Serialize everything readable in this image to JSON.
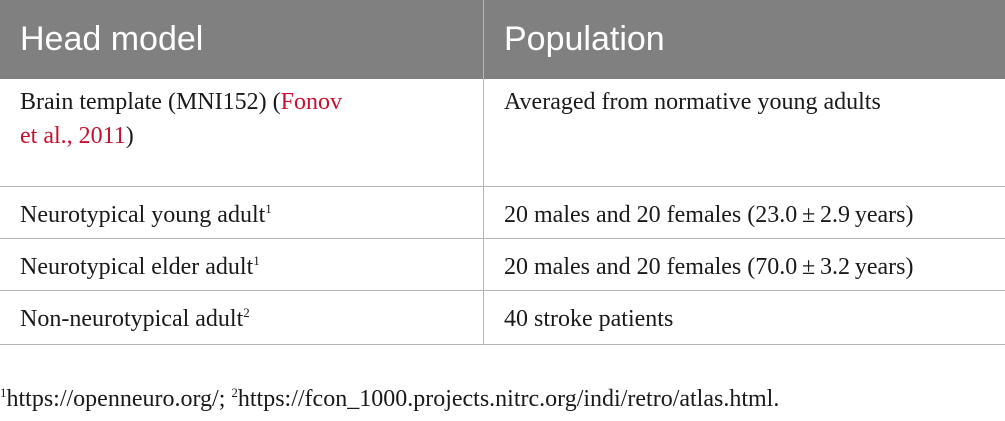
{
  "table": {
    "headers": [
      "Head model",
      "Population"
    ],
    "rows": [
      {
        "model_prefix": "Brain template (MNI152) (",
        "model_cite_1": "Fonov",
        "model_cite_2": "et al., 2011",
        "model_suffix": ")",
        "population": "Averaged from normative young adults"
      },
      {
        "model": "Neurotypical young adult",
        "marker": "1",
        "population": "20 males and 20 females (23.0 ± 2.9 years)"
      },
      {
        "model": "Neurotypical elder adult",
        "marker": "1",
        "population": "20 males and 20 females (70.0 ± 3.2 years)"
      },
      {
        "model": "Non-neurotypical adult",
        "marker": "2",
        "population": "40 stroke patients"
      }
    ]
  },
  "footnotes": {
    "marker_1": "1",
    "text_1": "https://openneuro.org/; ",
    "marker_2": "2",
    "text_2": "https://fcon_1000.projects.nitrc.org/indi/retro/atlas.html."
  },
  "colors": {
    "header_bg": "#808080",
    "header_text": "#ffffff",
    "citation": "#c8102e",
    "rule": "#b4b4b4"
  }
}
